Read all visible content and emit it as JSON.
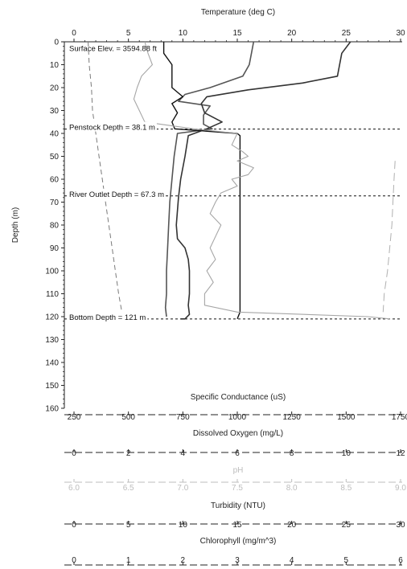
{
  "chart_data": {
    "type": "line",
    "title": "Temperature (deg C)",
    "y_axis": {
      "label": "Depth (m)",
      "range": [
        0,
        160
      ],
      "ticks": [
        0,
        10,
        20,
        30,
        40,
        50,
        60,
        70,
        80,
        90,
        100,
        110,
        120,
        130,
        140,
        150,
        160
      ],
      "inverted": true
    },
    "x_axes": [
      {
        "key": "temperature",
        "label": "Temperature (deg C)",
        "range": [
          0,
          30
        ],
        "ticks": [
          0,
          5,
          10,
          15,
          20,
          25,
          30
        ],
        "tick_labels": [
          "0",
          "5",
          "10",
          "15",
          "20",
          "25",
          "30"
        ],
        "position": "top",
        "color": "#222222"
      },
      {
        "key": "conductance",
        "label": "Specific Conductance (uS)",
        "range": [
          250,
          1750
        ],
        "ticks": [
          250,
          500,
          750,
          1000,
          1250,
          1500,
          1750
        ],
        "tick_labels": [
          "250",
          "500",
          "750",
          "1000",
          "1250",
          "1500",
          "1750"
        ],
        "position": "bottom",
        "color": "#222222"
      },
      {
        "key": "oxygen",
        "label": "Dissolved Oxygen (mg/L)",
        "range": [
          0,
          12
        ],
        "ticks": [
          0,
          2,
          4,
          6,
          8,
          10,
          12
        ],
        "tick_labels": [
          "0",
          "2",
          "4",
          "6",
          "8",
          "10",
          "12"
        ],
        "position": "bottom",
        "color": "#222222"
      },
      {
        "key": "ph",
        "label": "pH",
        "range": [
          6,
          9
        ],
        "ticks": [
          6,
          6.5,
          7,
          7.5,
          8,
          8.5,
          9
        ],
        "tick_labels": [
          "6.0",
          "6.5",
          "7.0",
          "7.5",
          "8.0",
          "8.5",
          "9.0"
        ],
        "position": "bottom",
        "color": "#bdbdbd"
      },
      {
        "key": "turbidity",
        "label": "Turbidity (NTU)",
        "range": [
          0,
          30
        ],
        "ticks": [
          0,
          5,
          10,
          15,
          20,
          25,
          30
        ],
        "tick_labels": [
          "0",
          "5",
          "10",
          "15",
          "20",
          "25",
          "30"
        ],
        "position": "bottom",
        "color": "#222222"
      },
      {
        "key": "chlorophyll",
        "label": "Chlorophyll (mg/m^3)",
        "range": [
          0,
          6
        ],
        "ticks": [
          0,
          1,
          2,
          3,
          4,
          5,
          6
        ],
        "tick_labels": [
          "0",
          "1",
          "2",
          "3",
          "4",
          "5",
          "6"
        ],
        "position": "bottom",
        "color": "#222222"
      }
    ],
    "reference_lines": [
      {
        "depth": 38.1,
        "label": "Penstock Depth = 38.1 m"
      },
      {
        "depth": 67.3,
        "label": "River Outlet Depth = 67.3 m"
      },
      {
        "depth": 121,
        "label": "Bottom Depth = 121 m"
      }
    ],
    "annotations": [
      {
        "depth": 3,
        "label": "Surface Elev. = 3594.88 ft"
      }
    ],
    "series": [
      {
        "axis": "temperature",
        "color": "#555555",
        "dash": "",
        "width": 1.6,
        "points": [
          [
            16.5,
            0
          ],
          [
            16.3,
            5
          ],
          [
            16.1,
            10
          ],
          [
            15.5,
            15
          ],
          [
            12.5,
            20
          ],
          [
            10.2,
            23
          ],
          [
            9.6,
            26
          ],
          [
            12.5,
            28
          ],
          [
            11.9,
            32
          ],
          [
            11.9,
            36
          ],
          [
            12.7,
            38
          ],
          [
            9.5,
            40
          ],
          [
            9.2,
            50
          ],
          [
            9.0,
            60
          ],
          [
            8.8,
            70
          ],
          [
            8.7,
            80
          ],
          [
            8.6,
            90
          ],
          [
            8.5,
            100
          ],
          [
            8.5,
            110
          ],
          [
            8.4,
            116
          ],
          [
            8.5,
            120
          ]
        ]
      },
      {
        "axis": "conductance",
        "color": "#333333",
        "dash": "",
        "width": 1.6,
        "points": [
          [
            1520,
            0
          ],
          [
            1480,
            5
          ],
          [
            1470,
            10
          ],
          [
            1460,
            15
          ],
          [
            1300,
            18
          ],
          [
            1050,
            21
          ],
          [
            860,
            24
          ],
          [
            835,
            27
          ],
          [
            850,
            31
          ],
          [
            930,
            35
          ],
          [
            860,
            38
          ],
          [
            775,
            41
          ],
          [
            760,
            50
          ],
          [
            740,
            60
          ],
          [
            730,
            68
          ],
          [
            720,
            80
          ],
          [
            725,
            86
          ],
          [
            760,
            90
          ],
          [
            775,
            95
          ],
          [
            780,
            100
          ],
          [
            780,
            110
          ],
          [
            775,
            115
          ],
          [
            780,
            119
          ],
          [
            760,
            121
          ],
          [
            740,
            121
          ]
        ]
      },
      {
        "axis": "oxygen",
        "color": "#111111",
        "dash": "",
        "width": 1.4,
        "points": [
          [
            3.3,
            0
          ],
          [
            3.3,
            5
          ],
          [
            3.6,
            10
          ],
          [
            3.6,
            20
          ],
          [
            4.0,
            24
          ],
          [
            3.6,
            27
          ],
          [
            3.8,
            31
          ],
          [
            3.6,
            35
          ],
          [
            3.7,
            38
          ],
          [
            6.0,
            40
          ],
          [
            6.1,
            41
          ],
          [
            6.1,
            60
          ],
          [
            6.1,
            80
          ],
          [
            6.1,
            100
          ],
          [
            6.1,
            118
          ],
          [
            6.0,
            121
          ]
        ]
      },
      {
        "axis": "ph",
        "color": "#a6a6a6",
        "dash": "",
        "width": 1.1,
        "points": [
          [
            6.65,
            0
          ],
          [
            6.68,
            5
          ],
          [
            6.72,
            10
          ],
          [
            6.62,
            15
          ],
          [
            6.58,
            20
          ],
          [
            6.55,
            25
          ],
          [
            6.6,
            30
          ],
          [
            6.65,
            35
          ],
          [
            7.1,
            38
          ],
          [
            7.5,
            40
          ],
          [
            7.45,
            45
          ],
          [
            7.55,
            48
          ],
          [
            7.6,
            50
          ],
          [
            7.5,
            52
          ],
          [
            7.65,
            55
          ],
          [
            7.6,
            58
          ],
          [
            7.45,
            60
          ],
          [
            7.5,
            63
          ],
          [
            7.35,
            66
          ],
          [
            7.3,
            70
          ],
          [
            7.25,
            75
          ],
          [
            7.35,
            80
          ],
          [
            7.3,
            85
          ],
          [
            7.25,
            90
          ],
          [
            7.3,
            95
          ],
          [
            7.22,
            100
          ],
          [
            7.28,
            105
          ],
          [
            7.2,
            110
          ],
          [
            7.2,
            115
          ],
          [
            7.5,
            118
          ],
          [
            8.7,
            120
          ],
          [
            8.9,
            121
          ]
        ]
      },
      {
        "axis": "turbidity",
        "color": "#7a7a7a",
        "dash": "6,4",
        "width": 1.0,
        "points": [
          [
            1.3,
            0
          ],
          [
            1.4,
            10
          ],
          [
            1.6,
            20
          ],
          [
            1.7,
            30
          ],
          [
            2.0,
            40
          ],
          [
            2.3,
            50
          ],
          [
            2.6,
            60
          ],
          [
            2.9,
            70
          ],
          [
            3.2,
            80
          ],
          [
            3.5,
            90
          ],
          [
            3.8,
            100
          ],
          [
            4.1,
            110
          ],
          [
            4.4,
            118
          ]
        ]
      },
      {
        "axis": "turbidity",
        "color": "#b0b0b0",
        "dash": "10,5",
        "width": 1.0,
        "points": [
          [
            29.5,
            52
          ],
          [
            29.4,
            60
          ],
          [
            29.3,
            70
          ],
          [
            29.2,
            80
          ],
          [
            29.0,
            90
          ],
          [
            28.8,
            100
          ],
          [
            28.5,
            110
          ],
          [
            28.4,
            118
          ]
        ]
      }
    ]
  }
}
